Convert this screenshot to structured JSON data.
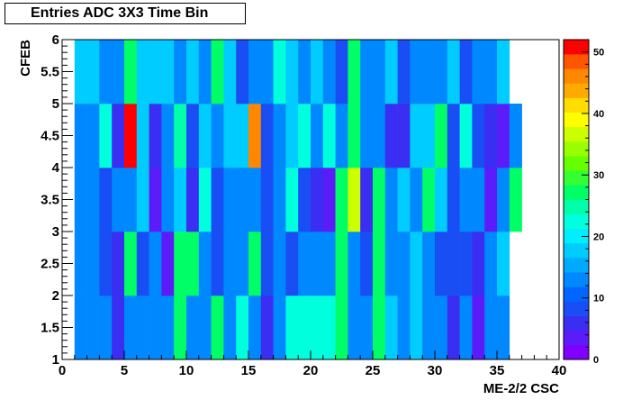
{
  "chart_data": {
    "type": "heatmap",
    "title": "Entries ADC 3X3 Time Bin",
    "xlabel": "ME-2/2 CSC",
    "ylabel": "CFEB",
    "xlim": [
      0,
      40
    ],
    "ylim": [
      1,
      6
    ],
    "x_ticks": [
      "0",
      "5",
      "10",
      "15",
      "20",
      "25",
      "30",
      "35",
      "40"
    ],
    "y_ticks": [
      "1",
      "1.5",
      "2",
      "2.5",
      "3",
      "3.5",
      "4",
      "4.5",
      "5",
      "5.5",
      "6"
    ],
    "zlim": [
      0,
      52
    ],
    "z_ticks": [
      "0",
      "10",
      "20",
      "30",
      "40",
      "50"
    ],
    "x_bins": [
      1,
      2,
      3,
      4,
      5,
      6,
      7,
      8,
      9,
      10,
      11,
      12,
      13,
      14,
      15,
      16,
      17,
      18,
      19,
      20,
      21,
      22,
      23,
      24,
      25,
      26,
      27,
      28,
      29,
      30,
      31,
      32,
      33,
      34,
      35,
      36
    ],
    "y_bins": [
      1,
      2,
      3,
      4,
      5
    ],
    "z": [
      [
        14,
        12,
        12,
        7,
        12,
        12,
        12,
        12,
        27,
        12,
        14,
        27,
        12,
        22,
        12,
        7,
        12,
        22,
        22,
        22,
        22,
        27,
        12,
        12,
        27,
        17,
        12,
        17,
        12,
        12,
        7,
        12,
        4,
        12,
        14,
        0
      ],
      [
        12,
        12,
        9,
        7,
        27,
        9,
        14,
        4,
        27,
        27,
        12,
        9,
        12,
        12,
        27,
        9,
        12,
        9,
        12,
        14,
        12,
        27,
        12,
        9,
        27,
        14,
        12,
        17,
        14,
        9,
        9,
        9,
        7,
        12,
        17,
        0
      ],
      [
        14,
        12,
        9,
        12,
        14,
        17,
        4,
        12,
        17,
        7,
        22,
        9,
        12,
        12,
        12,
        9,
        12,
        22,
        9,
        7,
        4,
        27,
        37,
        7,
        27,
        12,
        17,
        12,
        27,
        17,
        9,
        12,
        12,
        4,
        12,
        27
      ],
      [
        12,
        12,
        22,
        7,
        51,
        17,
        7,
        12,
        24,
        9,
        17,
        14,
        17,
        17,
        45,
        9,
        12,
        17,
        22,
        12,
        22,
        14,
        27,
        12,
        12,
        7,
        7,
        17,
        17,
        27,
        9,
        22,
        9,
        7,
        4,
        14
      ],
      [
        17,
        17,
        12,
        12,
        27,
        17,
        17,
        17,
        12,
        17,
        12,
        27,
        17,
        9,
        14,
        12,
        22,
        17,
        12,
        17,
        12,
        9,
        27,
        12,
        12,
        17,
        9,
        12,
        12,
        12,
        17,
        9,
        12,
        12,
        17,
        0
      ]
    ]
  }
}
